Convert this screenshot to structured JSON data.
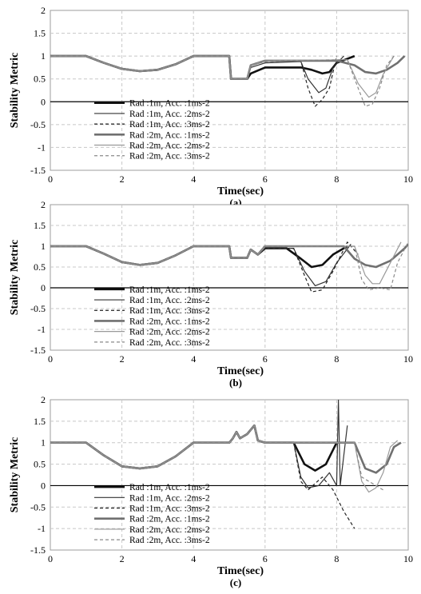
{
  "chart_data": [
    {
      "type": "line",
      "panel_label": "(a)",
      "xlabel": "Time(sec)",
      "ylabel": "Stability Metric",
      "xlim": [
        0,
        10
      ],
      "ylim": [
        -1.5,
        2
      ],
      "xticks": [
        "0",
        "2",
        "4",
        "6",
        "8",
        "10"
      ],
      "yticks": [
        "-1.5",
        "-1",
        "-0.5",
        "0",
        "0.5",
        "1",
        "1.5",
        "2"
      ],
      "grid": true,
      "legend_position": "lower-left",
      "series": [
        {
          "name": "Rad :1m, Acc. :1ms-2",
          "style": "thick-dark",
          "x": [
            0,
            1,
            1.5,
            2,
            2.5,
            3,
            3.5,
            4,
            5,
            5.05,
            5.5,
            5.6,
            6,
            7,
            7.3,
            7.6,
            7.8,
            8,
            8.5
          ],
          "y": [
            1,
            1,
            0.85,
            0.72,
            0.67,
            0.7,
            0.82,
            1,
            1,
            0.5,
            0.5,
            0.62,
            0.75,
            0.75,
            0.7,
            0.62,
            0.65,
            0.85,
            1.0
          ]
        },
        {
          "name": "Rad :1m, Acc. :2ms-2",
          "style": "thin-dark",
          "x": [
            0,
            1,
            1.5,
            2,
            2.5,
            3,
            3.5,
            4,
            5,
            5.05,
            5.5,
            5.6,
            6,
            7,
            7.2,
            7.5,
            7.7,
            7.9,
            8.2
          ],
          "y": [
            1,
            1,
            0.85,
            0.72,
            0.67,
            0.7,
            0.82,
            1,
            1,
            0.5,
            0.5,
            0.75,
            0.85,
            0.88,
            0.5,
            0.2,
            0.3,
            0.75,
            1.0
          ]
        },
        {
          "name": "Rad :1m, Acc. :3ms-2",
          "style": "dashed-dark",
          "x": [
            0,
            1,
            1.5,
            2,
            2.5,
            3,
            3.5,
            4,
            5,
            5.05,
            5.5,
            5.6,
            6,
            7,
            7.2,
            7.4,
            7.6,
            7.8,
            8
          ],
          "y": [
            1,
            1,
            0.85,
            0.72,
            0.67,
            0.7,
            0.82,
            1,
            1,
            0.5,
            0.5,
            0.8,
            0.88,
            0.9,
            0.3,
            -0.1,
            0.05,
            0.3,
            1.0
          ]
        },
        {
          "name": "Rad :2m, Acc. :1ms-2",
          "style": "thick-gray",
          "x": [
            0,
            1,
            1.5,
            2,
            2.5,
            3,
            3.5,
            4,
            5,
            5.05,
            5.5,
            5.6,
            6,
            8,
            8.5,
            8.8,
            9.1,
            9.4,
            9.7,
            9.9
          ],
          "y": [
            1,
            1,
            0.85,
            0.72,
            0.67,
            0.7,
            0.82,
            1,
            1,
            0.5,
            0.5,
            0.8,
            0.9,
            0.9,
            0.8,
            0.65,
            0.62,
            0.7,
            0.85,
            1.0
          ]
        },
        {
          "name": "Rad :2m, Acc. :2ms-2",
          "style": "thin-gray",
          "x": [
            0,
            1,
            1.5,
            2,
            2.5,
            3,
            3.5,
            4,
            5,
            5.05,
            5.5,
            5.6,
            6,
            8.3,
            8.6,
            8.9,
            9.1,
            9.3,
            9.6
          ],
          "y": [
            1,
            1,
            0.85,
            0.72,
            0.67,
            0.7,
            0.82,
            1,
            1,
            0.5,
            0.5,
            0.8,
            0.9,
            0.92,
            0.4,
            0.1,
            0.2,
            0.6,
            1.0
          ]
        },
        {
          "name": "Rad :2m, Acc. :3ms-2",
          "style": "dashed-gray",
          "x": [
            0,
            1,
            1.5,
            2,
            2.5,
            3,
            3.5,
            4,
            5,
            5.05,
            5.5,
            5.6,
            6,
            8.3,
            8.6,
            8.8,
            9.0,
            9.2,
            9.4,
            9.6
          ],
          "y": [
            1,
            1,
            0.85,
            0.72,
            0.67,
            0.7,
            0.82,
            1,
            1,
            0.5,
            0.5,
            0.8,
            0.9,
            0.92,
            0.3,
            -0.1,
            -0.05,
            0.3,
            0.8,
            1.0
          ]
        }
      ]
    },
    {
      "type": "line",
      "panel_label": "(b)",
      "xlabel": "Time(sec)",
      "ylabel": "Stability Metric",
      "xlim": [
        0,
        10
      ],
      "ylim": [
        -1.5,
        2
      ],
      "xticks": [
        "0",
        "2",
        "4",
        "6",
        "8",
        "10"
      ],
      "yticks": [
        "-1.5",
        "-1",
        "-0.5",
        "0",
        "0.5",
        "1",
        "1.5",
        "2"
      ],
      "grid": true,
      "legend_position": "lower-left",
      "series": [
        {
          "name": "Rad :1m, Acc. :1ms-2",
          "style": "thick-dark",
          "x": [
            0,
            1,
            1.5,
            2,
            2.5,
            3,
            3.5,
            4,
            5,
            5.05,
            5.5,
            5.6,
            5.8,
            6,
            6.6,
            7,
            7.3,
            7.6,
            7.9,
            8.3
          ],
          "y": [
            1,
            1,
            0.82,
            0.62,
            0.55,
            0.6,
            0.78,
            1,
            1,
            0.72,
            0.72,
            0.92,
            0.8,
            0.95,
            0.95,
            0.7,
            0.5,
            0.55,
            0.8,
            1.0
          ]
        },
        {
          "name": "Rad :1m, Acc. :2ms-2",
          "style": "thin-dark",
          "x": [
            0,
            1,
            1.5,
            2,
            2.5,
            3,
            3.5,
            4,
            5,
            5.05,
            5.5,
            5.6,
            5.8,
            6,
            6.8,
            7.1,
            7.4,
            7.7,
            8.0,
            8.4
          ],
          "y": [
            1,
            1,
            0.82,
            0.62,
            0.55,
            0.6,
            0.78,
            1,
            1,
            0.72,
            0.72,
            0.92,
            0.8,
            0.95,
            0.95,
            0.4,
            0.05,
            0.15,
            0.6,
            1.05
          ]
        },
        {
          "name": "Rad :1m, Acc. :3ms-2",
          "style": "dashed-dark",
          "x": [
            0,
            1,
            1.5,
            2,
            2.5,
            3,
            3.5,
            4,
            5,
            5.05,
            5.5,
            5.6,
            5.8,
            6,
            6.8,
            7.1,
            7.3,
            7.6,
            7.9,
            8.3,
            8.6
          ],
          "y": [
            1,
            1,
            0.82,
            0.62,
            0.55,
            0.6,
            0.78,
            1,
            1,
            0.72,
            0.72,
            0.92,
            0.8,
            0.95,
            0.95,
            0.3,
            -0.1,
            -0.05,
            0.4,
            1.1,
            0.8
          ]
        },
        {
          "name": "Rad :2m, Acc. :1ms-2",
          "style": "thick-gray",
          "x": [
            0,
            1,
            1.5,
            2,
            2.5,
            3,
            3.5,
            4,
            5,
            5.05,
            5.5,
            5.6,
            5.8,
            6,
            8.2,
            8.5,
            8.8,
            9.1,
            9.5,
            9.9,
            10
          ],
          "y": [
            1,
            1,
            0.82,
            0.62,
            0.55,
            0.6,
            0.78,
            1,
            1,
            0.72,
            0.72,
            0.92,
            0.8,
            1.0,
            1.0,
            0.7,
            0.55,
            0.5,
            0.65,
            0.95,
            1.05
          ]
        },
        {
          "name": "Rad :2m, Acc. :2ms-2",
          "style": "thin-gray",
          "x": [
            0,
            1,
            1.5,
            2,
            2.5,
            3,
            3.5,
            4,
            5,
            5.05,
            5.5,
            5.6,
            5.8,
            6,
            8.5,
            8.8,
            9.0,
            9.2,
            9.5,
            9.8
          ],
          "y": [
            1,
            1,
            0.82,
            0.62,
            0.55,
            0.6,
            0.78,
            1,
            1,
            0.72,
            0.72,
            0.92,
            0.8,
            1.0,
            1.0,
            0.3,
            0.1,
            0.1,
            0.6,
            1.1
          ]
        },
        {
          "name": "Rad :2m, Acc. :3ms-2",
          "style": "dashed-gray",
          "x": [
            0,
            1,
            1.5,
            2,
            2.5,
            3,
            3.5,
            4,
            5,
            5.05,
            5.5,
            5.6,
            5.8,
            6,
            8.5,
            8.7,
            8.9,
            9.2,
            9.5,
            9.7,
            10
          ],
          "y": [
            1,
            1,
            0.82,
            0.62,
            0.55,
            0.6,
            0.78,
            1,
            1,
            0.72,
            0.72,
            0.92,
            0.8,
            1.0,
            1.0,
            0.2,
            -0.05,
            0.0,
            -0.05,
            0.6,
            1.1
          ]
        }
      ]
    },
    {
      "type": "line",
      "panel_label": "(c)",
      "xlabel": "Time(sec)",
      "ylabel": "Stability Metric",
      "xlim": [
        0,
        10
      ],
      "ylim": [
        -1.5,
        2
      ],
      "xticks": [
        "0",
        "2",
        "4",
        "6",
        "8",
        "10"
      ],
      "yticks": [
        "-1.5",
        "-1",
        "-0.5",
        "0",
        "0.5",
        "1",
        "1.5",
        "2"
      ],
      "grid": true,
      "legend_position": "lower-left",
      "series": [
        {
          "name": "Rad :1m, Acc. :1ms-2",
          "style": "thick-dark",
          "x": [
            0,
            1,
            1.5,
            2,
            2.5,
            3,
            3.5,
            4,
            5,
            5.1,
            5.2,
            5.3,
            5.5,
            5.6,
            5.7,
            5.8,
            6,
            6.8,
            7.1,
            7.4,
            7.7,
            8.0
          ],
          "y": [
            1,
            1,
            0.7,
            0.45,
            0.4,
            0.45,
            0.68,
            1,
            1,
            1.1,
            1.25,
            1.1,
            1.2,
            1.3,
            1.4,
            1.05,
            1.0,
            1.0,
            0.5,
            0.35,
            0.5,
            1.0
          ]
        },
        {
          "name": "Rad :1m, Acc. :2ms-2",
          "style": "thin-dark",
          "x": [
            0,
            1,
            1.5,
            2,
            2.5,
            3,
            3.5,
            4,
            5,
            5.1,
            5.2,
            5.3,
            5.5,
            5.6,
            5.7,
            5.8,
            6,
            6.8,
            7.0,
            7.2,
            7.5,
            7.8,
            8.0,
            8.05,
            8.1,
            8.3
          ],
          "y": [
            1,
            1,
            0.7,
            0.45,
            0.4,
            0.45,
            0.68,
            1,
            1,
            1.1,
            1.25,
            1.1,
            1.2,
            1.3,
            1.4,
            1.05,
            1.0,
            1.0,
            0.2,
            -0.05,
            0.0,
            0.3,
            0.0,
            2.0,
            0.0,
            1.4
          ]
        },
        {
          "name": "Rad :1m, Acc. :3ms-2",
          "style": "dashed-dark",
          "x": [
            0,
            1,
            1.5,
            2,
            2.5,
            3,
            3.5,
            4,
            5,
            5.1,
            5.2,
            5.3,
            5.5,
            5.6,
            5.7,
            5.8,
            6,
            6.8,
            7.0,
            7.2,
            7.4,
            7.6,
            7.9,
            8.2,
            8.5
          ],
          "y": [
            1,
            1,
            0.7,
            0.45,
            0.4,
            0.45,
            0.68,
            1,
            1,
            1.1,
            1.25,
            1.1,
            1.2,
            1.3,
            1.4,
            1.05,
            1.0,
            1.0,
            0.1,
            -0.1,
            0.05,
            0.2,
            -0.1,
            -0.6,
            -1.0
          ]
        },
        {
          "name": "Rad :2m, Acc. :1ms-2",
          "style": "thick-gray",
          "x": [
            0,
            1,
            1.5,
            2,
            2.5,
            3,
            3.5,
            4,
            5,
            5.1,
            5.2,
            5.3,
            5.5,
            5.6,
            5.7,
            5.8,
            6,
            8.5,
            8.8,
            9.1,
            9.4,
            9.6,
            9.8
          ],
          "y": [
            1,
            1,
            0.7,
            0.45,
            0.4,
            0.45,
            0.68,
            1,
            1,
            1.1,
            1.25,
            1.1,
            1.2,
            1.3,
            1.4,
            1.05,
            1.0,
            1.0,
            0.4,
            0.3,
            0.5,
            0.9,
            1.0
          ]
        },
        {
          "name": "Rad :2m, Acc. :2ms-2",
          "style": "thin-gray",
          "x": [
            0,
            1,
            1.5,
            2,
            2.5,
            3,
            3.5,
            4,
            5,
            5.1,
            5.2,
            5.3,
            5.5,
            5.6,
            5.7,
            5.8,
            6,
            8.5,
            8.7,
            8.9,
            9.1,
            9.3,
            9.5,
            9.7
          ],
          "y": [
            1,
            1,
            0.7,
            0.45,
            0.4,
            0.45,
            0.68,
            1,
            1,
            1.1,
            1.25,
            1.1,
            1.2,
            1.3,
            1.4,
            1.05,
            1.0,
            1.0,
            0.1,
            -0.15,
            -0.05,
            0.3,
            0.9,
            1.05
          ]
        },
        {
          "name": "Rad :2m, Acc. :3ms-2",
          "style": "dashed-gray",
          "x": [
            0,
            1,
            1.5,
            2,
            2.5,
            3,
            3.5,
            4,
            5,
            5.1,
            5.2,
            5.3,
            5.5,
            5.6,
            5.7,
            5.8,
            6,
            8.5,
            8.7,
            8.9,
            9.1,
            9.3
          ],
          "y": [
            1,
            1,
            0.7,
            0.45,
            0.4,
            0.45,
            0.68,
            1,
            1,
            1.1,
            1.25,
            1.1,
            1.2,
            1.3,
            1.4,
            1.05,
            1.0,
            1.0,
            0.2,
            0.1,
            0.0,
            -0.1
          ]
        }
      ]
    }
  ],
  "styles": {
    "thick-dark": {
      "color": "#111111",
      "width": 2.6,
      "dash": ""
    },
    "thin-dark": {
      "color": "#333333",
      "width": 1.2,
      "dash": ""
    },
    "dashed-dark": {
      "color": "#222222",
      "width": 1.2,
      "dash": "4,3"
    },
    "thick-gray": {
      "color": "#707070",
      "width": 2.6,
      "dash": ""
    },
    "thin-gray": {
      "color": "#9a9a9a",
      "width": 1.2,
      "dash": ""
    },
    "dashed-gray": {
      "color": "#8a8a8a",
      "width": 1.2,
      "dash": "4,3"
    }
  }
}
